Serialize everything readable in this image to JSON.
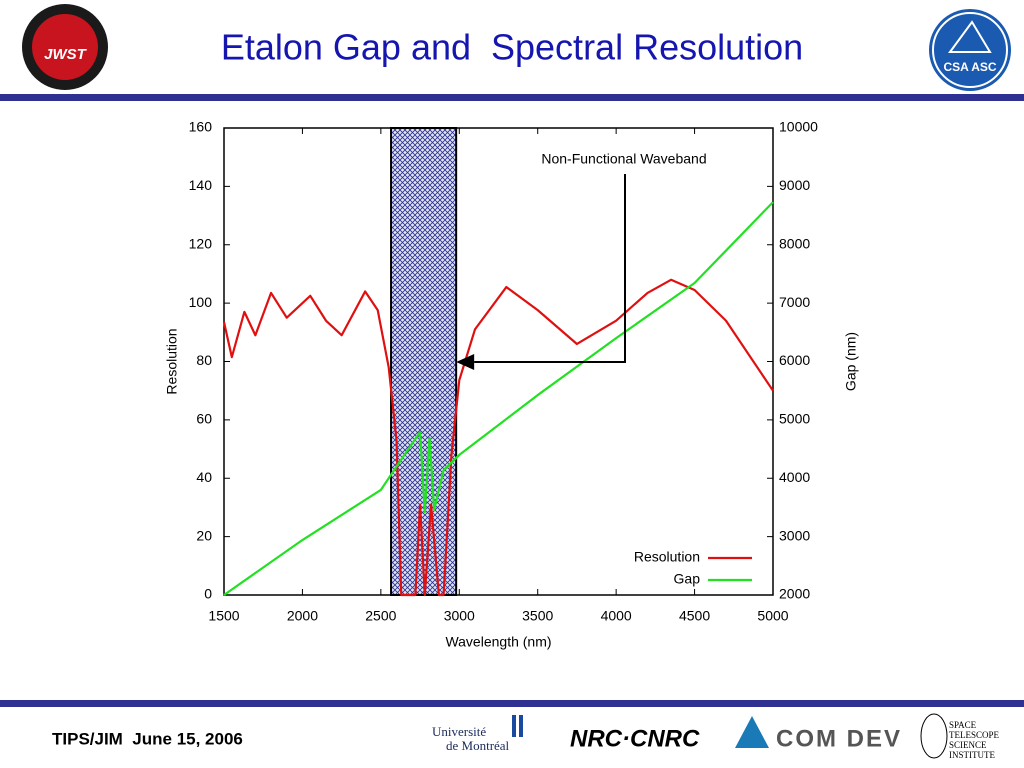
{
  "header": {
    "title": "Etalon Gap and  Spectral Resolution",
    "logo_left": "JWST",
    "logo_right": "CSA ASC"
  },
  "chart_data": {
    "type": "line",
    "xlabel": "Wavelength (nm)",
    "ylabel": "Resolution",
    "y2label": "Gap (nm)",
    "xlim": [
      1500,
      5000
    ],
    "xticks": [
      1500,
      2000,
      2500,
      3000,
      3500,
      4000,
      4500,
      5000
    ],
    "ylim": [
      0,
      160
    ],
    "yticks": [
      0,
      20,
      40,
      60,
      80,
      100,
      120,
      140,
      160
    ],
    "y2lim": [
      2000,
      10000
    ],
    "y2ticks": [
      2000,
      3000,
      4000,
      5000,
      6000,
      7000,
      8000,
      9000,
      10000
    ],
    "band": [
      2565,
      2980
    ],
    "annotation": "Non-Functional Waveband",
    "legend": "lower right",
    "series": [
      {
        "name": "Resolution",
        "color": "#e01010",
        "x": [
          1500,
          1550,
          1630,
          1700,
          1800,
          1900,
          2050,
          2150,
          2250,
          2400,
          2480,
          2550,
          2600,
          2630,
          2670,
          2720,
          2750,
          2780,
          2820,
          2870,
          2900,
          2950,
          3000,
          3100,
          3300,
          3500,
          3750,
          4000,
          4200,
          4350,
          4500,
          4700,
          5000
        ],
        "values": [
          93.5,
          81.5,
          97,
          89,
          103.5,
          95,
          102.5,
          94,
          89,
          104,
          97.6,
          78,
          53,
          0,
          0,
          0,
          31,
          0,
          31,
          0,
          0,
          48,
          73.6,
          91,
          105.5,
          97.6,
          86,
          94,
          103.5,
          108,
          104.5,
          94,
          70
        ]
      },
      {
        "name": "Gap",
        "color": "#22e022",
        "axis": "y2",
        "x": [
          1500,
          2000,
          2500,
          2650,
          2750,
          2780,
          2810,
          2840,
          2900,
          3000,
          3500,
          4000,
          4500,
          5000
        ],
        "values": [
          2000,
          2942,
          3800,
          4400,
          4790,
          3420,
          4690,
          3460,
          4140,
          4400,
          5425,
          6400,
          7345,
          8730
        ]
      }
    ]
  },
  "footer": {
    "text": "TIPS/JIM  June 15, 2006",
    "umontreal": [
      "Université",
      "de Montréal"
    ],
    "nrc": "NRC·CNRC",
    "comdev": "COM DEV",
    "stsci": [
      "SPACE",
      "TELESCOPE",
      "SCIENCE",
      "INSTITUTE"
    ]
  }
}
